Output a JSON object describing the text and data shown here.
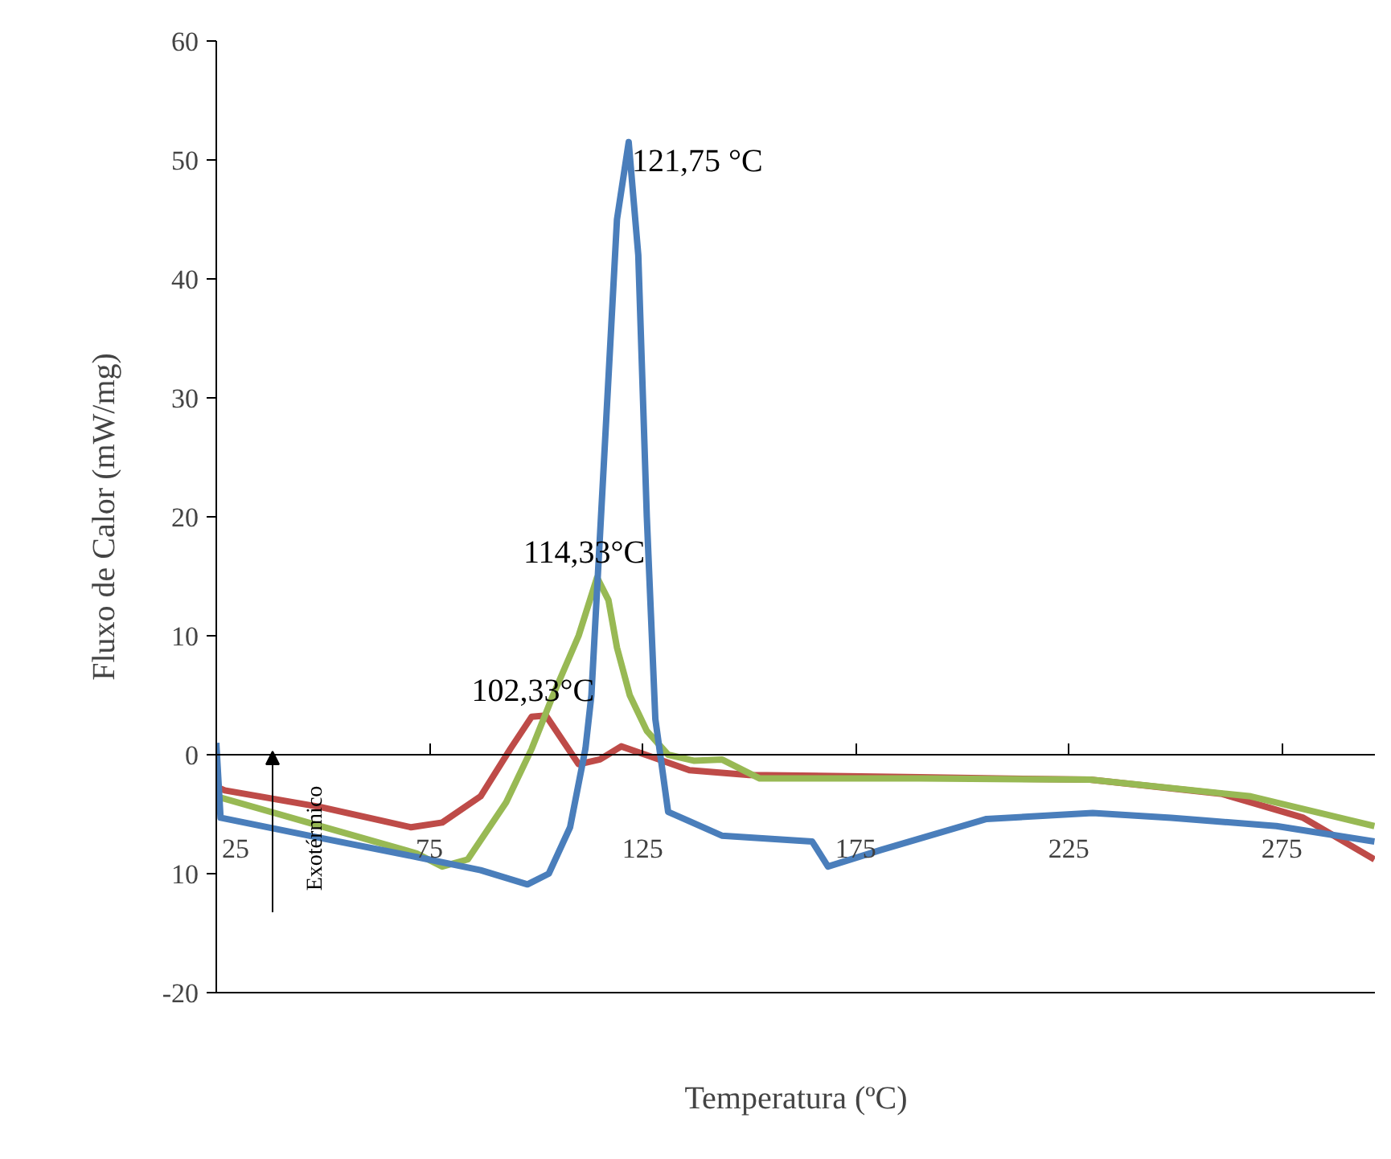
{
  "chart_data": {
    "type": "line",
    "xlabel": "Temperatura (ºC)",
    "ylabel": "Fluxo de Calor (mW/mg)",
    "xlim": [
      25,
      297
    ],
    "xticks": [
      25,
      75,
      125,
      175,
      225,
      275
    ],
    "ylim": [
      -20,
      60
    ],
    "yticks": [
      {
        "value": -20,
        "label": "-20"
      },
      {
        "value": -10,
        "label": "10"
      },
      0,
      10,
      20,
      30,
      40,
      50,
      60
    ],
    "marker": "none",
    "line_style": "solid",
    "series": [
      {
        "color": "#be4b48",
        "x": [
          25,
          27,
          49.5,
          70.7,
          78,
          87,
          94,
          99,
          102.33,
          110,
          115,
          120,
          126.5,
          136,
          150,
          190,
          230,
          261,
          280,
          296.7
        ],
        "values": [
          -2.7,
          -3,
          -4.4,
          -6.1,
          -5.7,
          -3.5,
          0.5,
          3.2,
          3.3,
          -0.8,
          -0.4,
          0.7,
          -0.1,
          -1.3,
          -1.7,
          -1.9,
          -2.1,
          -3.3,
          -5.3,
          -8.8
        ]
      },
      {
        "color": "#98b954",
        "x": [
          25,
          49.5,
          72,
          78,
          84,
          93,
          99,
          104,
          110,
          114.33,
          117,
          119,
          122,
          126,
          131,
          137,
          143.6,
          152.5,
          190,
          230,
          267.7,
          296.7
        ],
        "values": [
          -3.5,
          -6,
          -8.3,
          -9.4,
          -8.8,
          -4,
          0.5,
          5,
          10,
          14.9,
          13,
          9,
          5,
          2,
          0,
          -0.5,
          -0.4,
          -2,
          -2,
          -2.1,
          -3.5,
          -6
        ]
      },
      {
        "color": "#4a7ebb",
        "x": [
          25,
          26,
          49.5,
          72,
          87,
          98,
          103,
          108,
          111.6,
          113,
          116,
          119,
          121.75,
          124,
          126,
          128,
          131,
          143.6,
          164.8,
          168.5,
          181,
          205.7,
          230.6,
          249,
          273.7,
          296.7
        ],
        "values": [
          1,
          -5.3,
          -7,
          -8.6,
          -9.7,
          -10.9,
          -10,
          -6.1,
          0.5,
          5,
          25,
          45,
          51.5,
          42,
          20,
          3,
          -4.8,
          -6.8,
          -7.3,
          -9.4,
          -8,
          -5.4,
          -4.9,
          -5.3,
          -6,
          -7.3
        ]
      }
    ],
    "annotations": [
      {
        "text": "121,75 °C",
        "x": 121.75,
        "y": 51.5
      },
      {
        "text": "114,33°C",
        "x": 114.33,
        "y": 14.9
      },
      {
        "text": "102,33°C",
        "x": 102.33,
        "y": 3.3
      },
      "Exotérmico"
    ]
  }
}
